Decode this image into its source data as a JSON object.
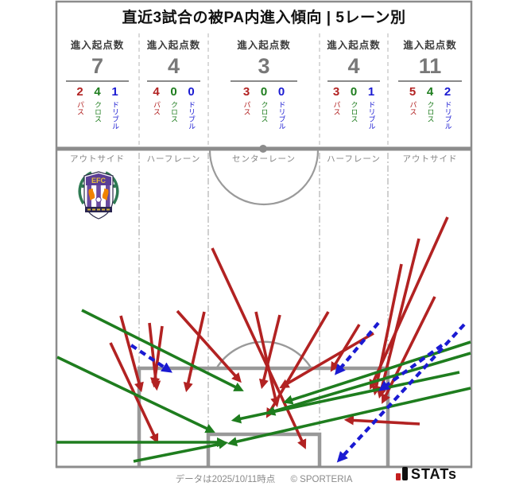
{
  "title": "直近3試合の被PA内進入傾向 | 5レーン別",
  "columns": [
    {
      "header": "進入起点数",
      "total": "7",
      "pass": "2",
      "cross": "4",
      "dribble": "1"
    },
    {
      "header": "進入起点数",
      "total": "4",
      "pass": "4",
      "cross": "0",
      "dribble": "0"
    },
    {
      "header": "進入起点数",
      "total": "3",
      "pass": "3",
      "cross": "0",
      "dribble": "0"
    },
    {
      "header": "進入起点数",
      "total": "4",
      "pass": "3",
      "cross": "0",
      "dribble": "1"
    },
    {
      "header": "進入起点数",
      "total": "11",
      "pass": "5",
      "cross": "4",
      "dribble": "2"
    }
  ],
  "legend": {
    "pass": "パス",
    "cross": "クロス",
    "dribble": "ドリブル"
  },
  "lanes": [
    "アウトサイド",
    "ハーフレーン",
    "センターレーン",
    "ハーフレーン",
    "アウトサイド"
  ],
  "crest": {
    "initials": "EFC"
  },
  "footer": {
    "note": "データは2025/10/11時点",
    "copyright": "© SPORTERIA",
    "logo": "STATs"
  },
  "colors": {
    "pass": "#b22222",
    "cross": "#1e7d1e",
    "dribble": "#1a1ad2",
    "pitch_line": "#999999",
    "thick_line": "#8c8c8c",
    "muted_text": "#8a8a8a"
  },
  "chart_data": {
    "type": "scatter",
    "subtype": "soccer-pitch-arrow-map",
    "title": "直近3試合の被PA内進入傾向 | 5レーン別",
    "coord_space": "pixels, 663x611, defending goal at bottom",
    "categories": [
      "アウトサイド(左)",
      "ハーフレーン(左)",
      "センターレーン",
      "ハーフレーン(右)",
      "アウトサイド(右)"
    ],
    "series": [
      {
        "name": "進入起点数",
        "values": [
          7,
          4,
          3,
          4,
          11
        ]
      },
      {
        "name": "パス",
        "values": [
          2,
          4,
          3,
          3,
          5
        ]
      },
      {
        "name": "クロス",
        "values": [
          4,
          0,
          0,
          0,
          4
        ]
      },
      {
        "name": "ドリブル",
        "values": [
          1,
          0,
          0,
          1,
          2
        ]
      }
    ],
    "legend_position": "per-lane header row",
    "arrows": [
      {
        "type": "pass",
        "from": [
          152,
          397
        ],
        "to": [
          177,
          489
        ]
      },
      {
        "type": "pass",
        "from": [
          139,
          431
        ],
        "to": [
          197,
          554
        ]
      },
      {
        "type": "pass",
        "from": [
          188,
          406
        ],
        "to": [
          197,
          487
        ]
      },
      {
        "type": "pass",
        "from": [
          204,
          410
        ],
        "to": [
          194,
          483
        ]
      },
      {
        "type": "pass",
        "from": [
          223,
          391
        ],
        "to": [
          301,
          478
        ]
      },
      {
        "type": "pass",
        "from": [
          257,
          392
        ],
        "to": [
          235,
          489
        ]
      },
      {
        "type": "pass",
        "from": [
          267,
          312
        ],
        "to": [
          383,
          561
        ]
      },
      {
        "type": "pass",
        "from": [
          322,
          392
        ],
        "to": [
          348,
          508
        ]
      },
      {
        "type": "pass",
        "from": [
          352,
          396
        ],
        "to": [
          330,
          485
        ]
      },
      {
        "type": "pass",
        "from": [
          413,
          392
        ],
        "to": [
          337,
          522
        ]
      },
      {
        "type": "pass",
        "from": [
          452,
          408
        ],
        "to": [
          418,
          464
        ]
      },
      {
        "type": "pass",
        "from": [
          470,
          419
        ],
        "to": [
          355,
          486
        ]
      },
      {
        "type": "pass",
        "from": [
          563,
          273
        ],
        "to": [
          467,
          486
        ]
      },
      {
        "type": "pass",
        "from": [
          505,
          332
        ],
        "to": [
          472,
          493
        ]
      },
      {
        "type": "pass",
        "from": [
          547,
          373
        ],
        "to": [
          482,
          504
        ]
      },
      {
        "type": "pass",
        "from": [
          528,
          533
        ],
        "to": [
          437,
          528
        ]
      },
      {
        "type": "pass",
        "from": [
          527,
          300
        ],
        "to": [
          478,
          497
        ]
      },
      {
        "type": "cross",
        "from": [
          103,
          390
        ],
        "to": [
          303,
          490
        ]
      },
      {
        "type": "cross",
        "from": [
          72,
          449
        ],
        "to": [
          267,
          542
        ]
      },
      {
        "type": "cross",
        "from": [
          71,
          556
        ],
        "to": [
          281,
          556
        ]
      },
      {
        "type": "cross",
        "from": [
          168,
          580
        ],
        "to": [
          283,
          557
        ]
      },
      {
        "type": "cross",
        "from": [
          592,
          430
        ],
        "to": [
          360,
          505
        ]
      },
      {
        "type": "cross",
        "from": [
          592,
          444
        ],
        "to": [
          338,
          519
        ]
      },
      {
        "type": "cross",
        "from": [
          578,
          468
        ],
        "to": [
          295,
          528
        ]
      },
      {
        "type": "cross",
        "from": [
          592,
          488
        ],
        "to": [
          290,
          557
        ]
      },
      {
        "type": "dribble",
        "from": [
          165,
          434
        ],
        "to": [
          213,
          466
        ]
      },
      {
        "type": "dribble",
        "from": [
          476,
          406
        ],
        "to": [
          424,
          468
        ]
      },
      {
        "type": "dribble",
        "from": [
          556,
          434
        ],
        "to": [
          480,
          489
        ]
      },
      {
        "type": "dribble",
        "from": [
          584,
          408
        ],
        "to": [
          427,
          578
        ]
      }
    ],
    "pitch": {
      "border": [
        70,
        2,
        594,
        587
      ],
      "halfway_line_y": 187,
      "lane_boundaries_x": [
        70,
        175,
        262,
        402,
        488,
        594
      ],
      "penalty_area": [
        175,
        463,
        488,
        587
      ],
      "goal_area": [
        262,
        546,
        402,
        587
      ]
    }
  }
}
